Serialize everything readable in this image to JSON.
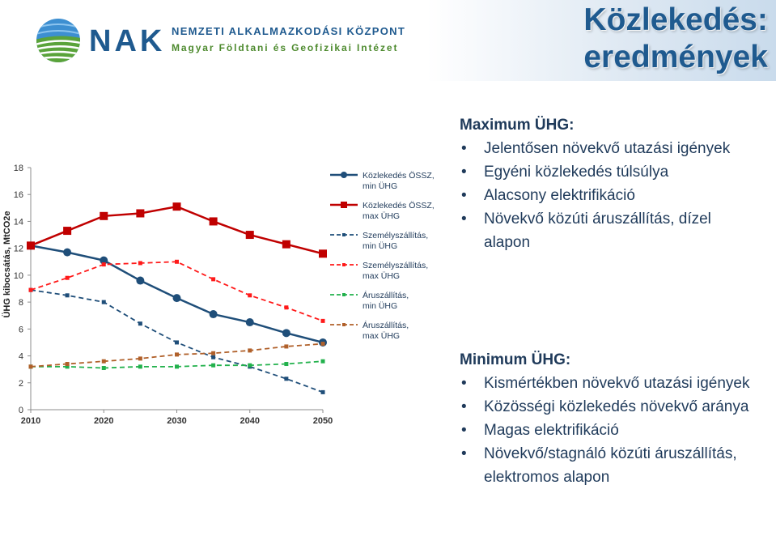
{
  "header": {
    "logo_text": "NAK",
    "org_name": "NEMZETI ALKALMAZKODÁSI KÖZPONT",
    "org_subtitle": "Magyar Földtani és Geofizikai Intézet",
    "title_line1": "Közlekedés:",
    "title_line2": "eredmények"
  },
  "colors": {
    "brand_blue": "#1f5a8f",
    "brand_green": "#4d8a2e",
    "series_navy": "#1f4e79",
    "series_red": "#c00000",
    "series_red_light": "#ff1a1a",
    "series_green": "#22b14c",
    "series_brown": "#b0602a"
  },
  "max_block": {
    "heading": "Maximum ÜHG:",
    "items": [
      "Jelentősen növekvő utazási igények",
      "Egyéni közlekedés túlsúlya",
      "Alacsony elektrifikáció",
      "Növekvő közúti áruszállítás, dízel alapon"
    ]
  },
  "min_block": {
    "heading": "Minimum ÜHG:",
    "items": [
      "Kismértékben növekvő utazási igények",
      "Közösségi közlekedés növekvő aránya",
      "Magas elektrifikáció",
      "Növekvő/stagnáló közúti áruszállítás, elektromos alapon"
    ]
  },
  "chart_data": {
    "type": "line",
    "ylabel": "ÜHG kibocsátás, MtCO2e",
    "xlabel": "",
    "x": [
      2010,
      2015,
      2020,
      2025,
      2030,
      2035,
      2040,
      2045,
      2050
    ],
    "xticks": [
      2010,
      2020,
      2030,
      2040,
      2050
    ],
    "yticks": [
      0,
      2,
      4,
      6,
      8,
      10,
      12,
      14,
      16,
      18
    ],
    "ylim": [
      0,
      18
    ],
    "grid": false,
    "legend_position": "right",
    "series": [
      {
        "name": "Közlekedés ÖSSZ, min ÜHG",
        "color": "#1f4e79",
        "dashed": false,
        "marker": "circle",
        "width": 2.5,
        "values": [
          12.2,
          11.7,
          11.1,
          9.6,
          8.3,
          7.1,
          6.5,
          5.7,
          5.0
        ]
      },
      {
        "name": "Közlekedés ÖSSZ, max ÜHG",
        "color": "#c00000",
        "dashed": false,
        "marker": "square",
        "width": 2.5,
        "values": [
          12.2,
          13.3,
          14.4,
          14.6,
          15.1,
          14.0,
          13.0,
          12.3,
          11.6
        ]
      },
      {
        "name": "Személyszállítás, min ÜHG",
        "color": "#1f4e79",
        "dashed": true,
        "marker": "small",
        "width": 1.8,
        "values": [
          8.9,
          8.5,
          8.0,
          6.4,
          5.0,
          3.9,
          3.2,
          2.3,
          1.3
        ]
      },
      {
        "name": "Személyszállítás, max ÜHG",
        "color": "#ff1a1a",
        "dashed": true,
        "marker": "small",
        "width": 1.8,
        "values": [
          8.9,
          9.8,
          10.8,
          10.9,
          11.0,
          9.7,
          8.5,
          7.6,
          6.6
        ]
      },
      {
        "name": "Áruszállítás, min ÜHG",
        "color": "#22b14c",
        "dashed": true,
        "marker": "small",
        "width": 1.8,
        "values": [
          3.2,
          3.2,
          3.1,
          3.2,
          3.2,
          3.3,
          3.3,
          3.4,
          3.6
        ]
      },
      {
        "name": "Áruszállítás, max ÜHG",
        "color": "#b0602a",
        "dashed": true,
        "marker": "small",
        "width": 1.8,
        "values": [
          3.2,
          3.4,
          3.6,
          3.8,
          4.1,
          4.2,
          4.4,
          4.7,
          4.9
        ]
      }
    ]
  }
}
